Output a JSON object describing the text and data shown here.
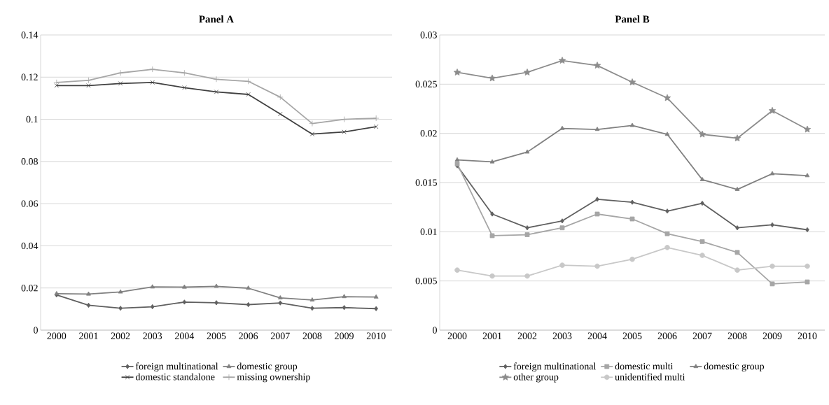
{
  "chart_data": [
    {
      "type": "line",
      "title": "Panel A",
      "categories": [
        "2000",
        "2001",
        "2002",
        "2003",
        "2004",
        "2005",
        "2006",
        "2007",
        "2008",
        "2009",
        "2010"
      ],
      "ylim": [
        0,
        0.14
      ],
      "yticks": [
        0,
        0.02,
        0.04,
        0.06,
        0.08,
        0.1,
        0.12,
        0.14
      ],
      "grid": "y",
      "legend": "bottom",
      "series": [
        {
          "name": "foreign multinational",
          "color": "#606060",
          "marker": "diamond",
          "values": [
            0.0167,
            0.0118,
            0.0104,
            0.0111,
            0.0133,
            0.013,
            0.0121,
            0.0129,
            0.0104,
            0.0107,
            0.0102
          ]
        },
        {
          "name": "domestic group",
          "color": "#808080",
          "marker": "triangle",
          "values": [
            0.0173,
            0.0171,
            0.0181,
            0.0205,
            0.0204,
            0.0208,
            0.0199,
            0.0153,
            0.0143,
            0.0159,
            0.0157
          ]
        },
        {
          "name": "domestic standalone",
          "color": "#404040",
          "marker": "cross",
          "values": [
            0.116,
            0.116,
            0.117,
            0.1175,
            0.115,
            0.113,
            0.1118,
            0.1025,
            0.093,
            0.094,
            0.0965
          ]
        },
        {
          "name": "missing ownership",
          "color": "#a6a6a6",
          "marker": "plus",
          "values": [
            0.1175,
            0.1185,
            0.122,
            0.1237,
            0.122,
            0.119,
            0.118,
            0.1105,
            0.098,
            0.1,
            0.1005
          ]
        }
      ]
    },
    {
      "type": "line",
      "title": "Panel B",
      "categories": [
        "2000",
        "2001",
        "2002",
        "2003",
        "2004",
        "2005",
        "2006",
        "2007",
        "2008",
        "2009",
        "2010"
      ],
      "ylim": [
        0,
        0.03
      ],
      "yticks": [
        0,
        0.005,
        0.01,
        0.015,
        0.02,
        0.025,
        0.03
      ],
      "grid": "y",
      "legend": "bottom",
      "series": [
        {
          "name": "foreign multinational",
          "color": "#606060",
          "marker": "diamond",
          "values": [
            0.0167,
            0.0118,
            0.0104,
            0.0111,
            0.0133,
            0.013,
            0.0121,
            0.0129,
            0.0104,
            0.0107,
            0.0102
          ]
        },
        {
          "name": "domestic multi",
          "color": "#a6a6a6",
          "marker": "square",
          "values": [
            0.0169,
            0.0096,
            0.0097,
            0.0104,
            0.0118,
            0.0113,
            0.0098,
            0.009,
            0.0079,
            0.0047,
            0.0049
          ]
        },
        {
          "name": "domestic group",
          "color": "#808080",
          "marker": "triangle",
          "values": [
            0.0173,
            0.0171,
            0.0181,
            0.0205,
            0.0204,
            0.0208,
            0.0199,
            0.0153,
            0.0143,
            0.0159,
            0.0157
          ]
        },
        {
          "name": "other group",
          "color": "#8c8c8c",
          "marker": "star",
          "values": [
            0.0262,
            0.0256,
            0.0262,
            0.0274,
            0.0269,
            0.0252,
            0.0236,
            0.0199,
            0.0195,
            0.0223,
            0.0204
          ]
        },
        {
          "name": "unidentified multi",
          "color": "#c8c8c8",
          "marker": "circle",
          "values": [
            0.0061,
            0.0055,
            0.0055,
            0.0066,
            0.0065,
            0.0072,
            0.0084,
            0.0076,
            0.0061,
            0.0065,
            0.0065
          ]
        }
      ]
    }
  ]
}
